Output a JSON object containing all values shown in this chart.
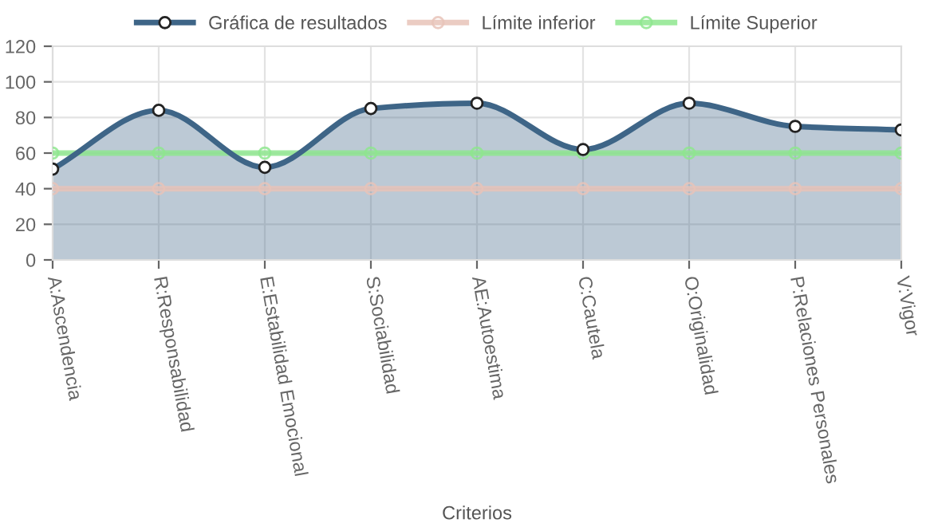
{
  "chart_data": {
    "type": "line",
    "xlabel": "Criterios",
    "categories": [
      "A:Ascendencia",
      "R:Responsabilidad",
      "E:Estabilidad Emocional",
      "S:Sociabilidad",
      "AE:Autoestima",
      "C:Cautela",
      "O:Originalidad",
      "P:Relaciones Personales",
      "V:Vigor"
    ],
    "series": [
      {
        "name": "Gráfica de resultados",
        "type": "area",
        "color": "#3e6587",
        "values": [
          51,
          84,
          52,
          85,
          88,
          62,
          88,
          75,
          73
        ]
      },
      {
        "name": "Límite inferior",
        "color": "#e8c3b9",
        "values": [
          40,
          40,
          40,
          40,
          40,
          40,
          40,
          40,
          40
        ]
      },
      {
        "name": "Límite Superior",
        "color": "#8ee68e",
        "values": [
          60,
          60,
          60,
          60,
          60,
          60,
          60,
          60,
          60
        ]
      }
    ],
    "ylim": [
      0,
      120
    ],
    "yticks": [
      0,
      20,
      40,
      60,
      80,
      100,
      120
    ],
    "grid": true,
    "legend": "top",
    "marker": "circle",
    "line_style": "solid"
  }
}
